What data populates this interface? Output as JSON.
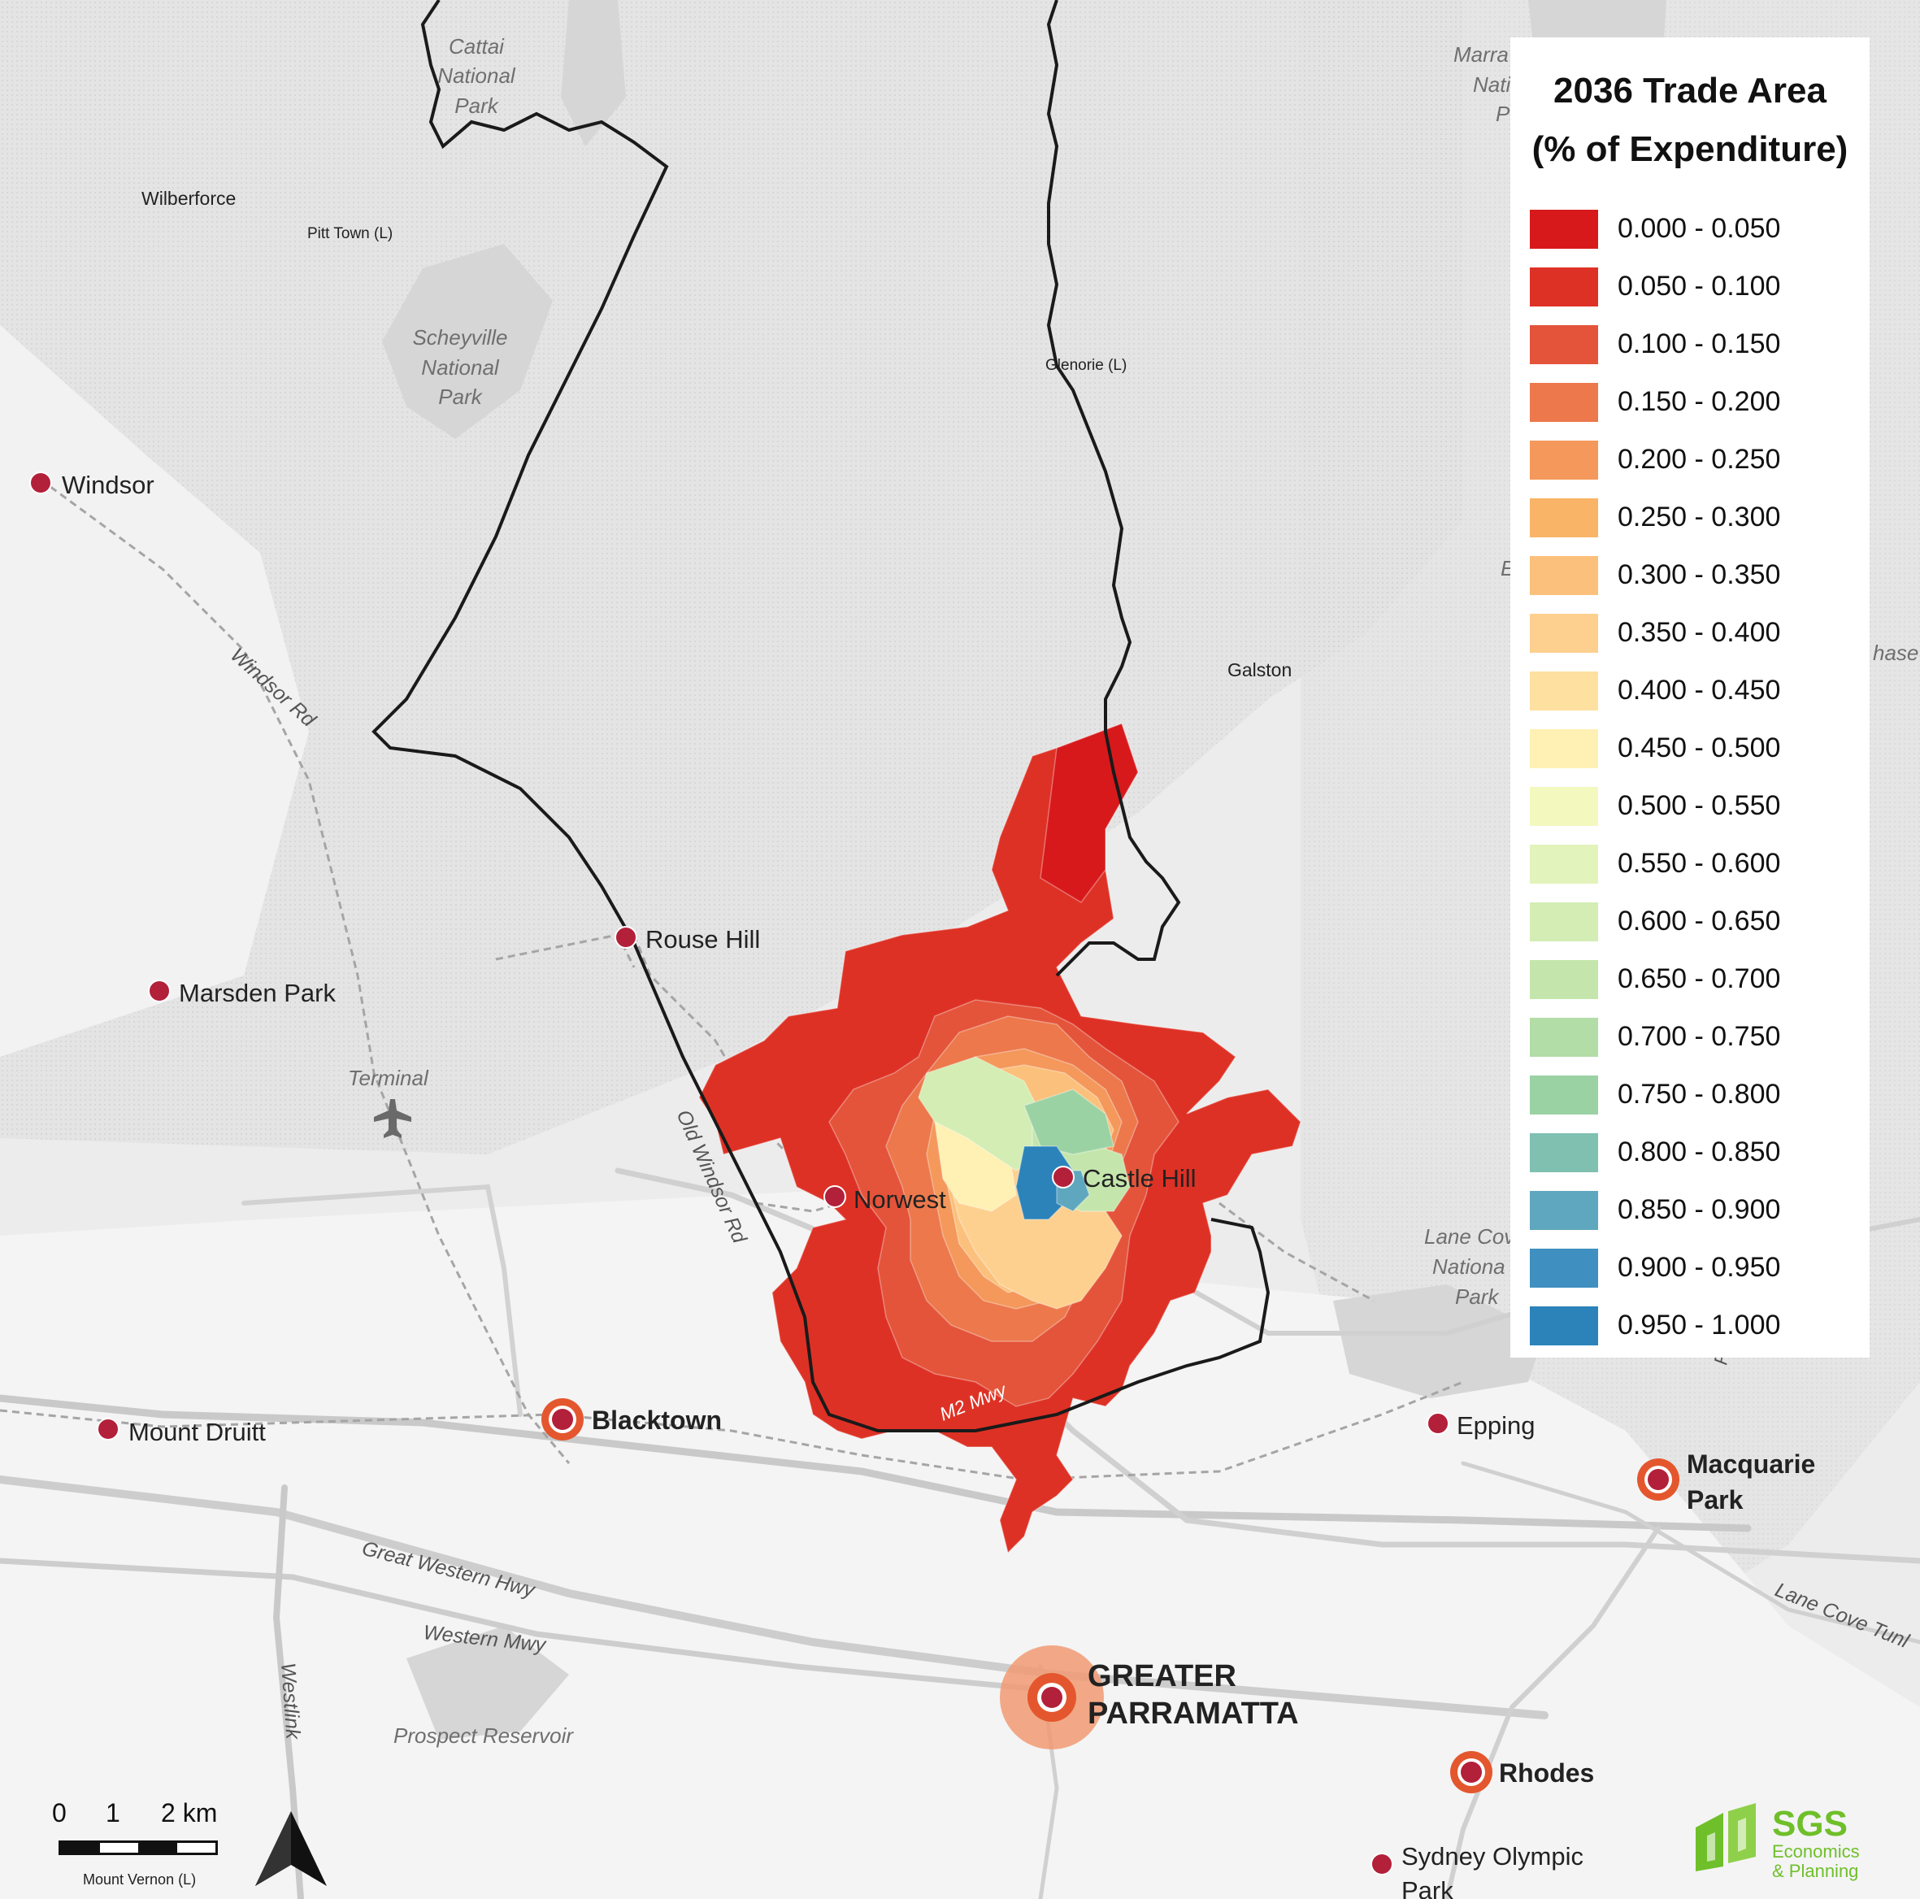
{
  "legend": {
    "title_line1": "2036 Trade Area",
    "title_line2": "(% of Expenditure)",
    "classes": [
      {
        "range": "0.000 - 0.050",
        "color": "#d7191c"
      },
      {
        "range": "0.050 - 0.100",
        "color": "#de3125"
      },
      {
        "range": "0.100 - 0.150",
        "color": "#e4543a"
      },
      {
        "range": "0.150 - 0.200",
        "color": "#ec784c"
      },
      {
        "range": "0.200 - 0.250",
        "color": "#f4985b"
      },
      {
        "range": "0.250 - 0.300",
        "color": "#f9b467"
      },
      {
        "range": "0.300 - 0.350",
        "color": "#fbc07b"
      },
      {
        "range": "0.350 - 0.400",
        "color": "#fdd08f"
      },
      {
        "range": "0.400 - 0.450",
        "color": "#fee0a0"
      },
      {
        "range": "0.450 - 0.500",
        "color": "#fff0b3"
      },
      {
        "range": "0.500 - 0.550",
        "color": "#f3f8bf"
      },
      {
        "range": "0.550 - 0.600",
        "color": "#e3f3bc"
      },
      {
        "range": "0.600 - 0.650",
        "color": "#d3edb4"
      },
      {
        "range": "0.650 - 0.700",
        "color": "#c4e6ac"
      },
      {
        "range": "0.700 - 0.750",
        "color": "#b2dda6"
      },
      {
        "range": "0.750 - 0.800",
        "color": "#9bd2a4"
      },
      {
        "range": "0.800 - 0.850",
        "color": "#7fc0b1"
      },
      {
        "range": "0.850 - 0.900",
        "color": "#5fa7be"
      },
      {
        "range": "0.900 - 0.950",
        "color": "#3f90c1"
      },
      {
        "range": "0.950 - 1.000",
        "color": "#2b83ba"
      }
    ]
  },
  "places": {
    "windsor": "Windsor",
    "rouse_hill": "Rouse Hill",
    "marsden_park": "Marsden Park",
    "norwest": "Norwest",
    "castle_hill": "Castle Hill",
    "mount_druitt": "Mount Druitt",
    "blacktown": "Blacktown",
    "epping": "Epping",
    "macquarie_park_1": "Macquarie",
    "macquarie_park_2": "Park",
    "greater_parramatta_1": "GREATER",
    "greater_parramatta_2": "PARRAMATTA",
    "rhodes": "Rhodes",
    "sydney_olympic_park_1": "Sydney Olympic",
    "sydney_olympic_park_2": "Park",
    "wilberforce": "Wilberforce",
    "pitt_town": "Pitt Town (L)",
    "glenorie": "Glenorie (L)",
    "galston": "Galston",
    "mount_vernon": "Mount Vernon (L)",
    "terminal": "Terminal"
  },
  "parks": {
    "cattai_1": "Cattai",
    "cattai_2": "National",
    "cattai_3": "Park",
    "scheyville_1": "Scheyville",
    "scheyville_2": "National",
    "scheyville_3": "Park",
    "lane_cove_1": "Lane Cov",
    "lane_cove_2": "Nationa",
    "lane_cove_3": "Park",
    "marra_1": "Marra",
    "marra_2": "Nati",
    "marra_3": "Pa",
    "prospect": "Prospect Reservoir",
    "frag_e": "E",
    "frag_hase": "hase"
  },
  "roads": {
    "windsor_rd": "Windsor Rd",
    "old_windsor_rd": "Old Windsor Rd",
    "m2": "M2 Mwy",
    "great_western": "Great Western Hwy",
    "western_mwy": "Western Mwy",
    "westlink": "Westlink",
    "lane_cove_tunl": "Lane Cove Tunl",
    "ryde": "Ryd"
  },
  "scale": {
    "n0": "0",
    "n1": "1",
    "n2": "2 km"
  },
  "logo": {
    "name": "SGS",
    "line1": "Economics",
    "line2": "& Planning"
  },
  "colors": {
    "boundary": "#1a1a1a",
    "town_dot": "#b3203a",
    "centre_ring": "#e4572e",
    "logo_green": "#6fbf2a"
  }
}
